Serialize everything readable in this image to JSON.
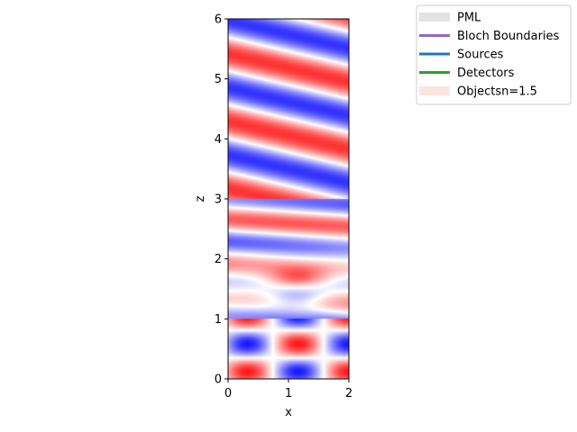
{
  "chart_data": {
    "type": "heatmap",
    "xlabel": "x",
    "ylabel": "z",
    "xlim": [
      0,
      2
    ],
    "ylim": [
      0,
      6
    ],
    "xticks": [
      "0",
      "1",
      "2"
    ],
    "yticks": [
      "0",
      "1",
      "2",
      "3",
      "4",
      "5",
      "6"
    ],
    "colormap": {
      "negative": "#0000ff",
      "zero": "#ffffff",
      "positive": "#ff0000"
    },
    "legend": {
      "placement": "upper-right-outside",
      "entries": [
        {
          "label": "PML",
          "style": "patch",
          "color": "#e3e3e3"
        },
        {
          "label": "Bloch Boundaries",
          "style": "line",
          "color": "#9467bd"
        },
        {
          "label": "Sources",
          "style": "line",
          "color": "#1f77b4"
        },
        {
          "label": "Detectors",
          "style": "line",
          "color": "#2ca02c"
        },
        {
          "label": "Objectsn=1.5",
          "style": "patch",
          "color": "#fde3e3"
        }
      ]
    }
  }
}
